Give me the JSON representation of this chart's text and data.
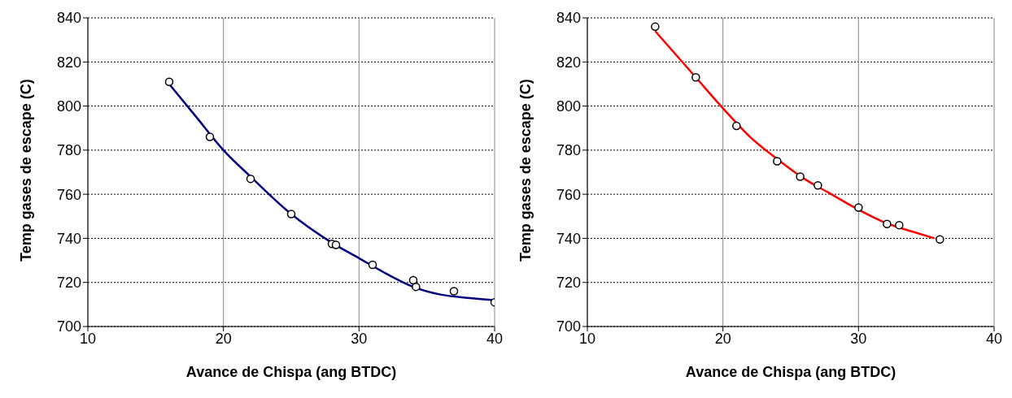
{
  "chart_data": [
    {
      "type": "scatter",
      "xlabel": "Avance de Chispa (ang BTDC)",
      "ylabel": "Temp gases de escape (C)",
      "xlim": [
        10,
        40
      ],
      "xticks": [
        10,
        20,
        30,
        40
      ],
      "ylim": [
        700,
        840
      ],
      "yticks": [
        700,
        720,
        740,
        760,
        780,
        800,
        820,
        840
      ],
      "grid": true,
      "series": [
        {
          "type": "line",
          "color": "#000080",
          "marker": "none",
          "x": [
            16,
            18,
            20,
            22,
            25,
            28,
            30,
            32,
            34,
            36,
            38,
            40
          ],
          "values": [
            810,
            795,
            780,
            768,
            751,
            738,
            731,
            724,
            718,
            714.5,
            713,
            712
          ]
        },
        {
          "color": "#000000",
          "marker": "circle",
          "x": [
            16,
            19,
            22,
            25,
            28,
            28.3,
            31,
            34,
            34.2,
            37,
            40
          ],
          "values": [
            811,
            786,
            767,
            751,
            737.5,
            737,
            728,
            721,
            718,
            716,
            711
          ]
        }
      ]
    },
    {
      "type": "scatter",
      "xlabel": "Avance de Chispa (ang BTDC)",
      "ylabel": "Temp gases de escape (C)",
      "xlim": [
        10,
        40
      ],
      "xticks": [
        10,
        20,
        30,
        40
      ],
      "ylim": [
        700,
        840
      ],
      "yticks": [
        700,
        720,
        740,
        760,
        780,
        800,
        820,
        840
      ],
      "grid": true,
      "series": [
        {
          "type": "line",
          "color": "#ff0000",
          "marker": "none",
          "x": [
            15,
            18,
            20,
            22,
            24,
            26,
            28,
            30,
            32,
            34,
            35.6
          ],
          "values": [
            834,
            813,
            799,
            786,
            776,
            767,
            760,
            753,
            747,
            743,
            740
          ]
        },
        {
          "color": "#000000",
          "marker": "circle",
          "x": [
            15,
            18,
            21,
            24,
            25.7,
            27,
            30,
            32.1,
            33,
            36
          ],
          "values": [
            836,
            813,
            791,
            775,
            768,
            764,
            754,
            746.5,
            746,
            739.5
          ]
        }
      ]
    }
  ]
}
